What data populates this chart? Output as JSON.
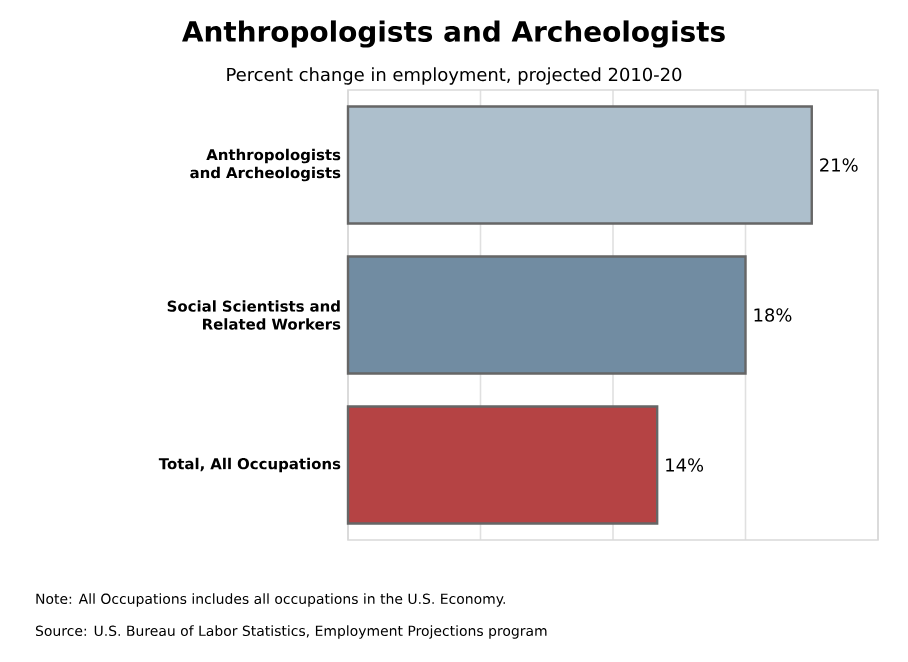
{
  "chart_data": {
    "type": "bar",
    "orientation": "horizontal",
    "title": "Anthropologists and Archeologists",
    "subtitle": "Percent change in employment, projected 2010-20",
    "categories": [
      "Anthropologists and Archeologists",
      "Social Scientists and Related Workers",
      "Total, All Occupations"
    ],
    "values": [
      21,
      18,
      14
    ],
    "value_labels": [
      "21%",
      "18%",
      "14%"
    ],
    "colors": [
      "#adbfcc",
      "#718ca2",
      "#b54344"
    ],
    "xlim": [
      0,
      24
    ],
    "xticks": [
      {
        "value": 0,
        "label": null
      },
      {
        "value": 6,
        "label": null
      },
      {
        "value": 12,
        "label": null
      },
      {
        "value": 18,
        "label": null
      },
      {
        "value": 24,
        "label": null
      }
    ],
    "grid": "x",
    "tick_labels": "y",
    "annotations": [
      "Note: All Occupations includes all occupations in the U.S. Economy.",
      "Source: U.S. Bureau of Labor Statistics, Employment Projections program"
    ]
  }
}
